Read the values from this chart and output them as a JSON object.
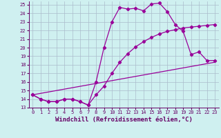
{
  "xlabel": "Windchill (Refroidissement éolien,°C)",
  "bg_color": "#cff0f0",
  "grid_color": "#aabbcc",
  "line_color": "#990099",
  "xlim": [
    -0.5,
    23.5
  ],
  "ylim": [
    13,
    25.4
  ],
  "xticks": [
    0,
    1,
    2,
    3,
    4,
    5,
    6,
    7,
    8,
    9,
    10,
    11,
    12,
    13,
    14,
    15,
    16,
    17,
    18,
    19,
    20,
    21,
    22,
    23
  ],
  "yticks": [
    13,
    14,
    15,
    16,
    17,
    18,
    19,
    20,
    21,
    22,
    23,
    24,
    25
  ],
  "line1_x": [
    0,
    1,
    2,
    3,
    4,
    5,
    6,
    7,
    8,
    9,
    10,
    11,
    12,
    13,
    14,
    15,
    16,
    17,
    18,
    19,
    20,
    21,
    22,
    23
  ],
  "line1_y": [
    14.5,
    14.0,
    13.7,
    13.7,
    14.0,
    14.0,
    13.7,
    13.3,
    16.0,
    20.0,
    23.0,
    24.7,
    24.5,
    24.6,
    24.3,
    25.1,
    25.2,
    24.2,
    22.7,
    21.9,
    19.2,
    19.5,
    18.5,
    18.5
  ],
  "line2_x": [
    0,
    1,
    2,
    3,
    4,
    5,
    6,
    7,
    8,
    9,
    10,
    11,
    12,
    13,
    14,
    15,
    16,
    17,
    18,
    19,
    20,
    21,
    22,
    23
  ],
  "line2_y": [
    14.5,
    14.0,
    13.7,
    13.7,
    14.0,
    14.0,
    13.7,
    13.3,
    14.5,
    15.5,
    17.0,
    18.3,
    19.3,
    20.1,
    20.7,
    21.2,
    21.6,
    21.9,
    22.1,
    22.3,
    22.4,
    22.5,
    22.6,
    22.7
  ],
  "line3_x": [
    0,
    23
  ],
  "line3_y": [
    14.5,
    18.3
  ],
  "marker": "D",
  "marker_size": 2.2,
  "line_width": 0.9,
  "tick_fontsize": 5.0,
  "xlabel_fontsize": 6.5
}
